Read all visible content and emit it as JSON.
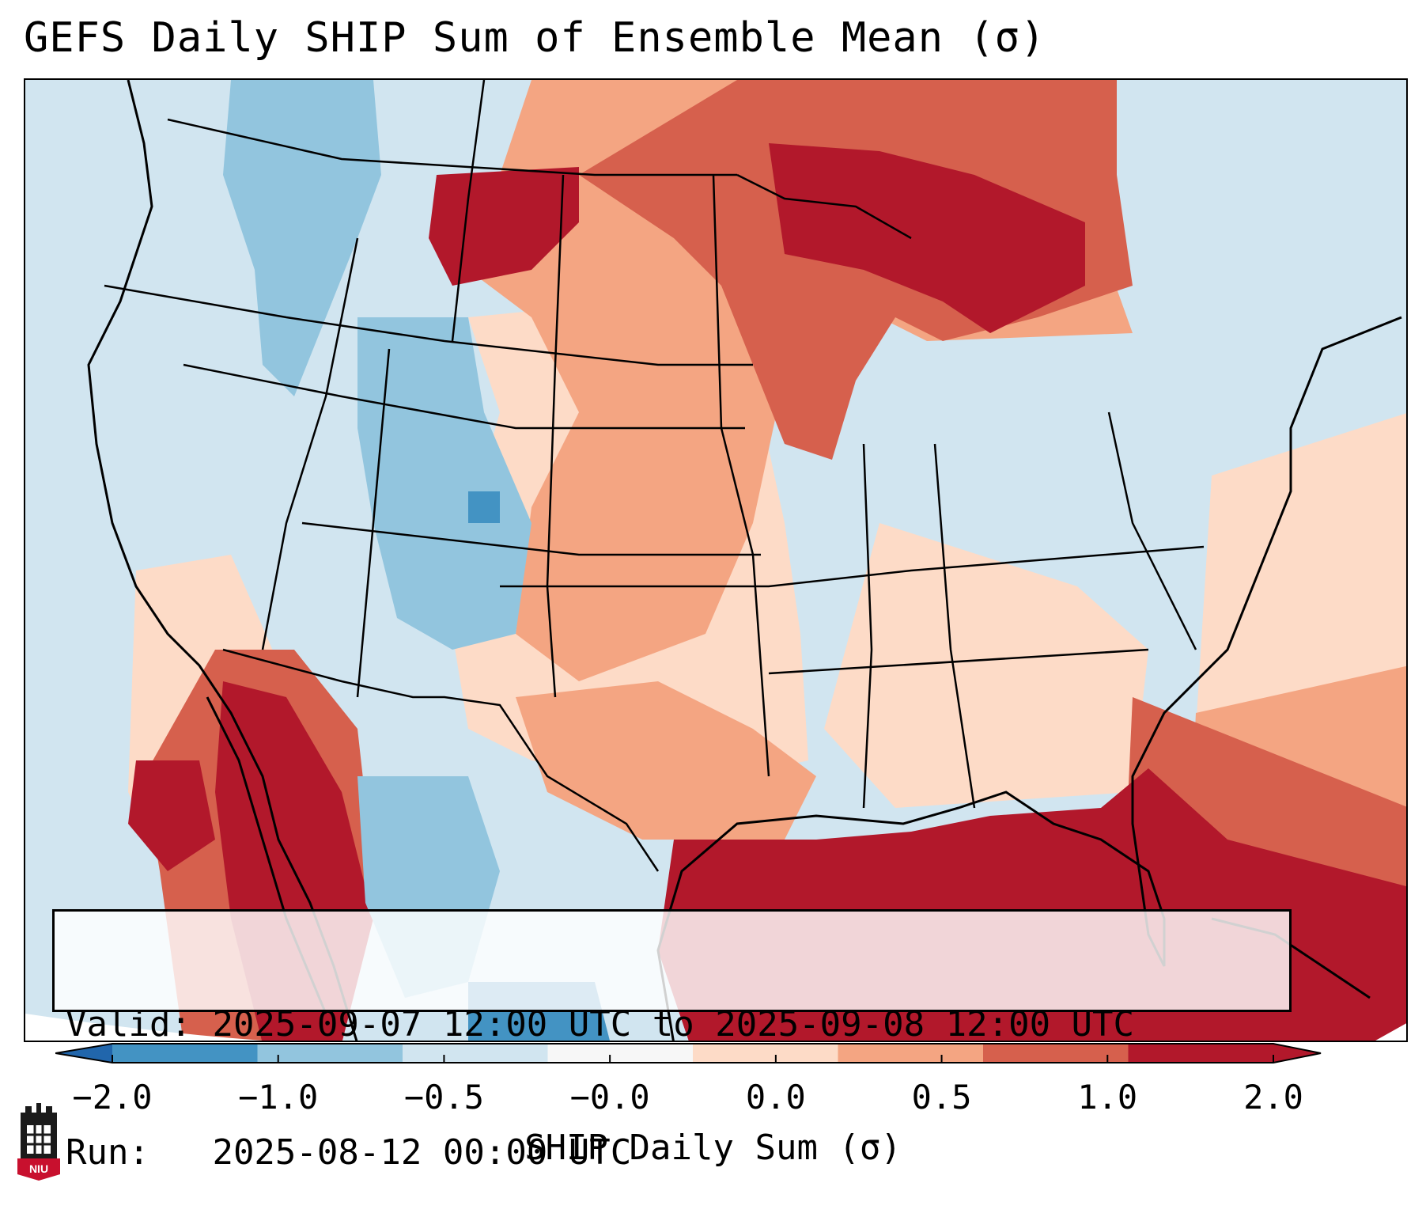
{
  "title": "GEFS Daily SHIP Sum of Ensemble Mean (σ)",
  "valid_label": "Valid:",
  "valid_value": "2025-09-07 12:00 UTC to 2025-09-08 12:00 UTC",
  "run_label": "Run:",
  "run_value": "2025-08-12 00:00 UTC",
  "colorbar": {
    "title": "SHIP Daily Sum (σ)",
    "tick_labels": [
      "−2.0",
      "−1.0",
      "−0.5",
      "−0.0",
      "0.0",
      "0.5",
      "1.0",
      "2.0"
    ],
    "colors": [
      "#4393c3",
      "#92c5de",
      "#d1e5f0",
      "#f7f7f7",
      "#fddbc7",
      "#f4a582",
      "#d6604d",
      "#b2182b"
    ],
    "extend_low_color": "#2166ac",
    "extend_high_color": "#b2182b"
  },
  "logo_text": "NIU",
  "colors": {
    "ocean_neutral": "#d1e5f0",
    "strong_positive": "#b2182b",
    "positive": "#d6604d",
    "weak_positive": "#f4a582",
    "slight_positive": "#fddbc7",
    "slight_negative": "#d1e5f0",
    "negative": "#92c5de",
    "strong_negative": "#4393c3"
  }
}
